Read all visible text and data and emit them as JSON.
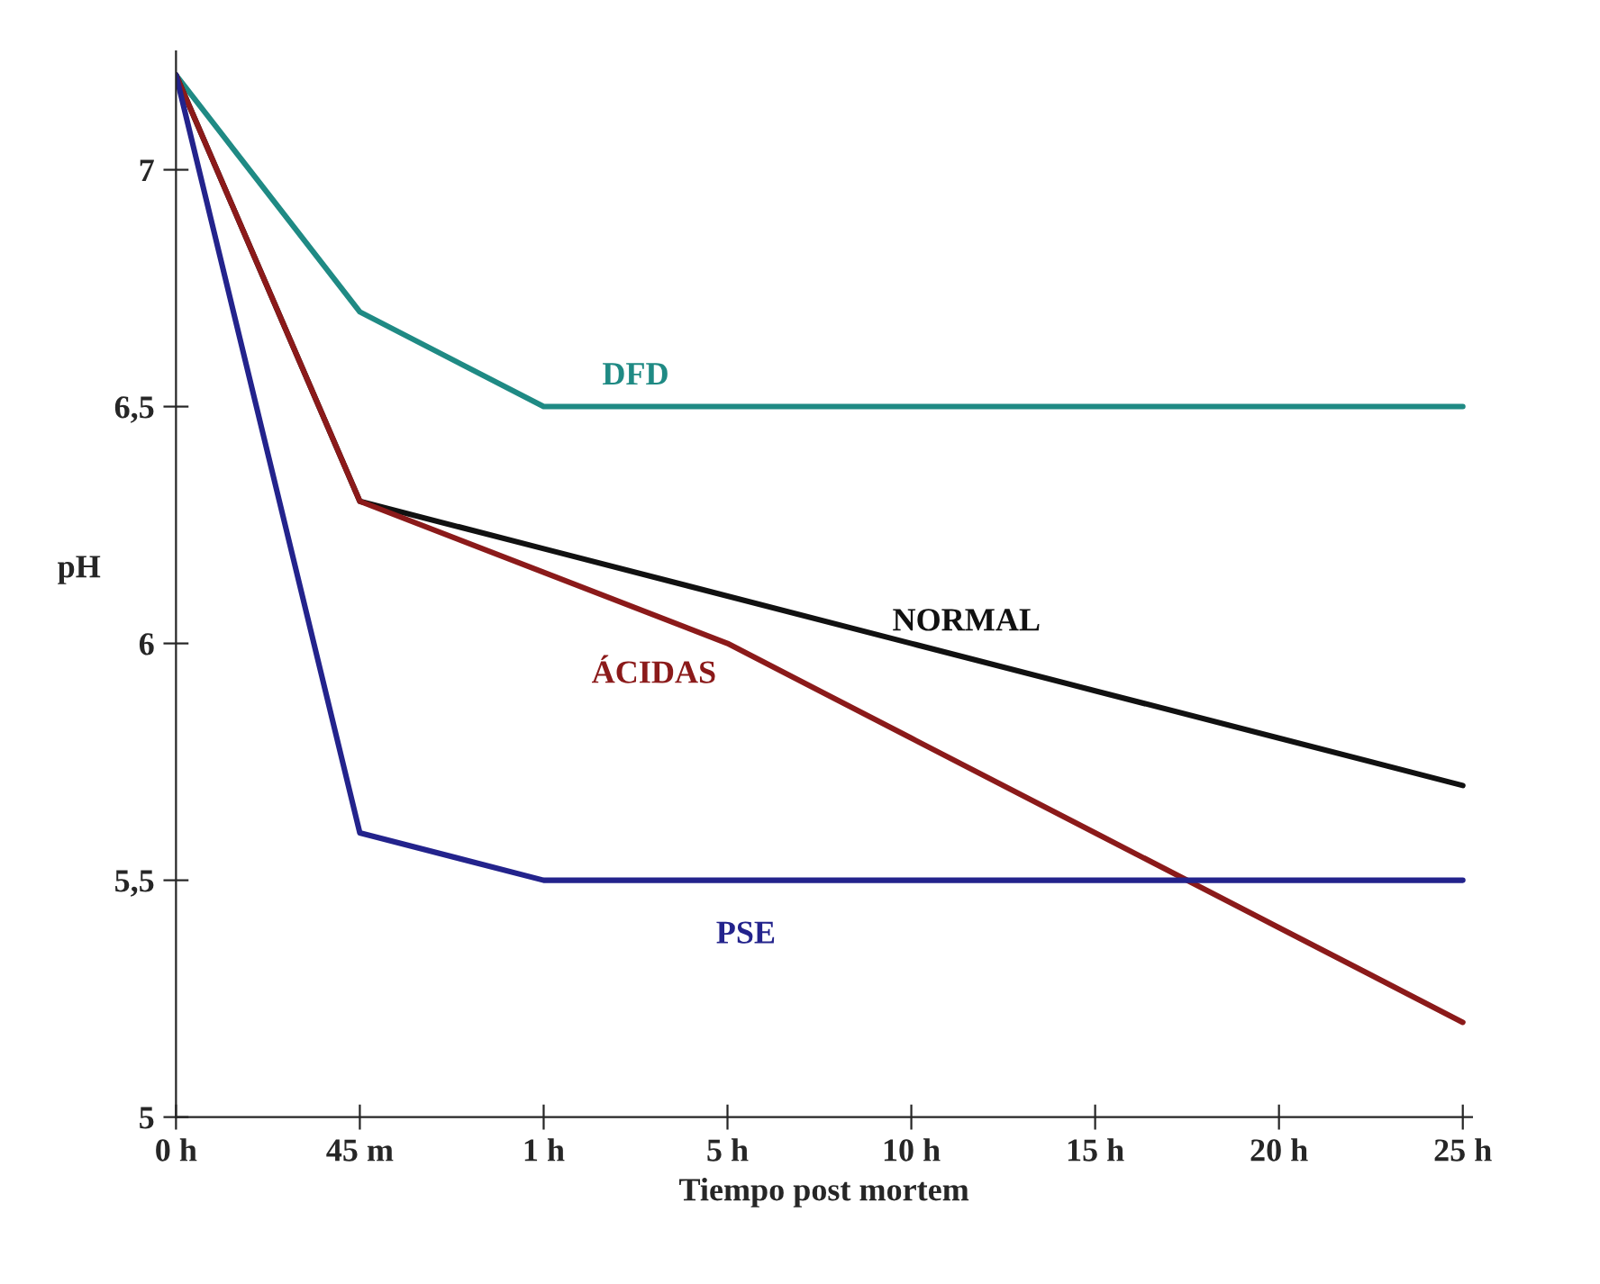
{
  "chart_data": {
    "type": "line",
    "xlabel": "Tiempo post mortem",
    "ylabel": "pH",
    "categories": [
      "0 h",
      "45 m",
      "1 h",
      "5 h",
      "10 h",
      "15 h",
      "20 h",
      "25 h"
    ],
    "series": [
      {
        "name": "DFD",
        "color": "#1f8a84",
        "values": [
          7.2,
          6.7,
          6.5,
          6.5,
          6.5,
          6.5,
          6.5,
          6.5
        ]
      },
      {
        "name": "NORMAL",
        "color": "#111111",
        "values": [
          7.2,
          6.3,
          6.2,
          6.1,
          6.0,
          5.9,
          5.8,
          5.7
        ]
      },
      {
        "name": "ÁCIDAS",
        "color": "#8b1a1a",
        "values": [
          7.2,
          6.3,
          6.15,
          6.0,
          5.8,
          5.6,
          5.4,
          5.2
        ]
      },
      {
        "name": "PSE",
        "color": "#23238c",
        "values": [
          7.2,
          5.6,
          5.5,
          5.5,
          5.5,
          5.5,
          5.5,
          5.5
        ]
      }
    ],
    "ylim": [
      5,
      7.25
    ],
    "yticks": [
      5,
      {
        "value": 5.5,
        "label": "5,5"
      },
      6,
      {
        "value": 6.5,
        "label": "6,5"
      },
      7
    ],
    "grid": false,
    "legend": false,
    "marker": "none",
    "line_style": "solid"
  }
}
